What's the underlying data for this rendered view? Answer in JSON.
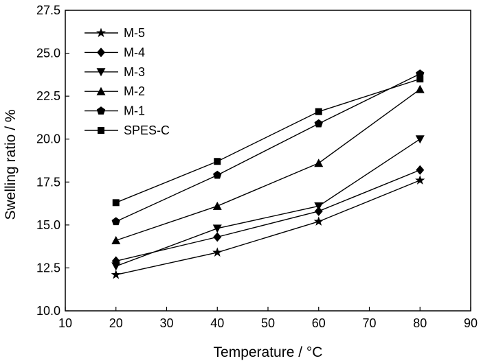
{
  "chart_data": {
    "type": "line",
    "xlabel": "Temperature / °C",
    "ylabel": "Swelling ratio / %",
    "xlim": [
      10,
      90
    ],
    "ylim": [
      10.0,
      27.5
    ],
    "xticks": [
      "10",
      "20",
      "30",
      "40",
      "50",
      "60",
      "70",
      "80",
      "90"
    ],
    "yticks": [
      "10.0",
      "12.5",
      "15.0",
      "17.5",
      "20.0",
      "22.5",
      "25.0",
      "27.5"
    ],
    "grid": false,
    "legend_position": "top-left",
    "x": [
      20,
      40,
      60,
      80
    ],
    "series": [
      {
        "name": "M-5",
        "marker": "star",
        "values": [
          12.1,
          13.4,
          15.2,
          17.6
        ]
      },
      {
        "name": "M-4",
        "marker": "diamond",
        "values": [
          12.9,
          14.3,
          15.8,
          18.2
        ]
      },
      {
        "name": "M-3",
        "marker": "triangle-down",
        "values": [
          12.6,
          14.8,
          16.1,
          20.0
        ]
      },
      {
        "name": "M-2",
        "marker": "triangle-up",
        "values": [
          14.1,
          16.1,
          18.6,
          22.9
        ]
      },
      {
        "name": "M-1",
        "marker": "pentagon",
        "values": [
          15.2,
          17.9,
          20.9,
          23.8
        ]
      },
      {
        "name": "SPES-C",
        "marker": "square",
        "values": [
          16.3,
          18.7,
          21.6,
          23.5
        ]
      }
    ]
  }
}
